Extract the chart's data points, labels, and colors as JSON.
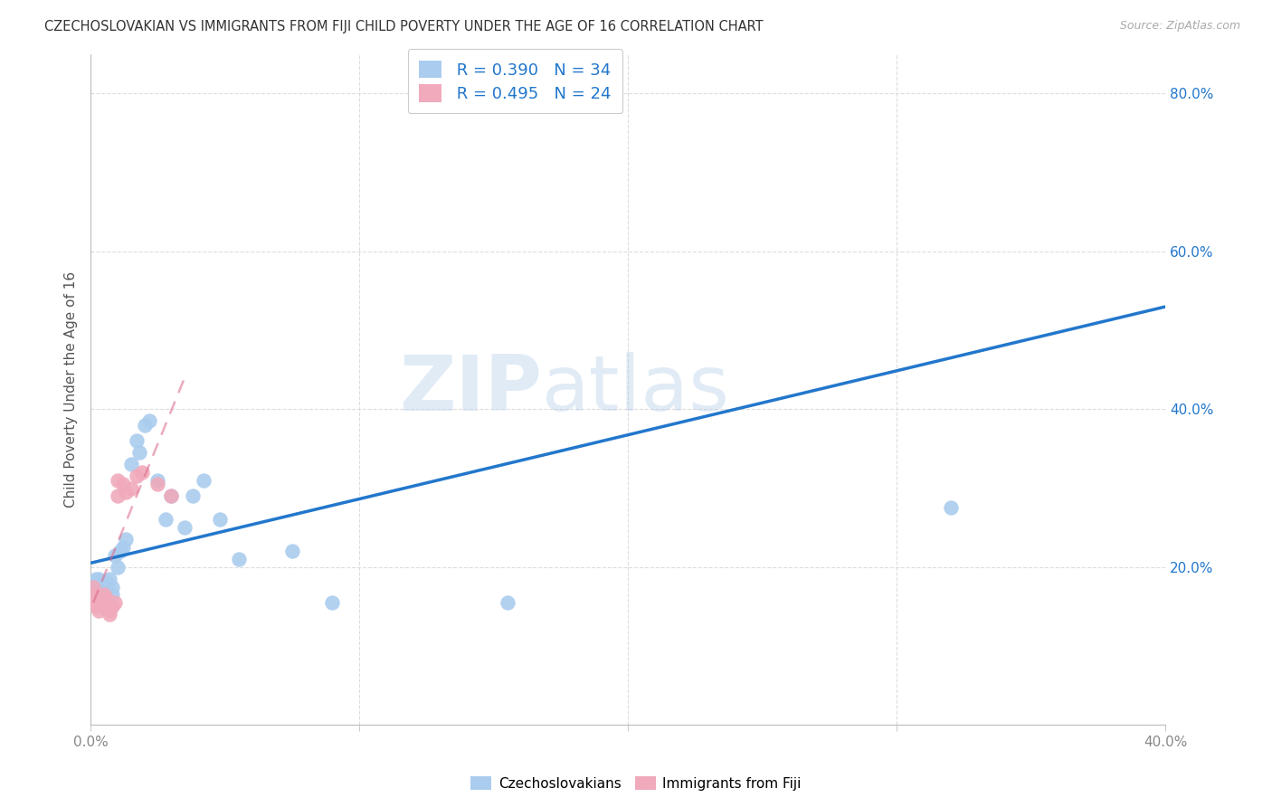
{
  "title": "CZECHOSLOVAKIAN VS IMMIGRANTS FROM FIJI CHILD POVERTY UNDER THE AGE OF 16 CORRELATION CHART",
  "source": "Source: ZipAtlas.com",
  "ylabel": "Child Poverty Under the Age of 16",
  "xlim": [
    0,
    0.4
  ],
  "ylim": [
    0,
    0.85
  ],
  "xtick_positions": [
    0.0,
    0.1,
    0.2,
    0.3,
    0.4
  ],
  "xtick_labels": [
    "0.0%",
    "",
    "",
    "",
    "40.0%"
  ],
  "yticks_right": [
    0.2,
    0.4,
    0.6,
    0.8
  ],
  "ytick_right_labels": [
    "20.0%",
    "40.0%",
    "60.0%",
    "80.0%"
  ],
  "watermark_zip": "ZIP",
  "watermark_atlas": "atlas",
  "legend_R_czech": "R = 0.390",
  "legend_N_czech": "N = 34",
  "legend_R_fiji": "R = 0.495",
  "legend_N_fiji": "N = 24",
  "czech_color": "#aaccee",
  "fiji_color": "#f0aabb",
  "trend_czech_color": "#2277cc",
  "trend_fiji_color": "#dd6688",
  "background_color": "#ffffff",
  "grid_color": "#dddddd",
  "czech_x": [
    0.001,
    0.002,
    0.003,
    0.003,
    0.004,
    0.004,
    0.005,
    0.005,
    0.006,
    0.007,
    0.008,
    0.008,
    0.009,
    0.01,
    0.011,
    0.012,
    0.013,
    0.015,
    0.017,
    0.018,
    0.02,
    0.022,
    0.025,
    0.028,
    0.03,
    0.035,
    0.038,
    0.042,
    0.048,
    0.055,
    0.075,
    0.09,
    0.155,
    0.32
  ],
  "czech_y": [
    0.175,
    0.185,
    0.185,
    0.175,
    0.17,
    0.165,
    0.175,
    0.16,
    0.18,
    0.185,
    0.175,
    0.165,
    0.215,
    0.2,
    0.22,
    0.225,
    0.235,
    0.33,
    0.36,
    0.345,
    0.38,
    0.385,
    0.31,
    0.26,
    0.29,
    0.25,
    0.29,
    0.31,
    0.26,
    0.21,
    0.22,
    0.155,
    0.155,
    0.275
  ],
  "fiji_x": [
    0.001,
    0.001,
    0.002,
    0.002,
    0.003,
    0.003,
    0.004,
    0.004,
    0.005,
    0.005,
    0.006,
    0.007,
    0.007,
    0.008,
    0.009,
    0.01,
    0.01,
    0.012,
    0.013,
    0.015,
    0.017,
    0.019,
    0.025,
    0.03
  ],
  "fiji_y": [
    0.175,
    0.16,
    0.165,
    0.15,
    0.16,
    0.145,
    0.155,
    0.15,
    0.165,
    0.155,
    0.16,
    0.145,
    0.14,
    0.15,
    0.155,
    0.29,
    0.31,
    0.305,
    0.295,
    0.3,
    0.315,
    0.32,
    0.305,
    0.29
  ],
  "trend_czech_x0": 0.0,
  "trend_czech_y0": 0.205,
  "trend_czech_x1": 0.4,
  "trend_czech_y1": 0.53,
  "trend_fiji_x0": 0.001,
  "trend_fiji_y0": 0.155,
  "trend_fiji_x1": 0.035,
  "trend_fiji_y1": 0.44
}
